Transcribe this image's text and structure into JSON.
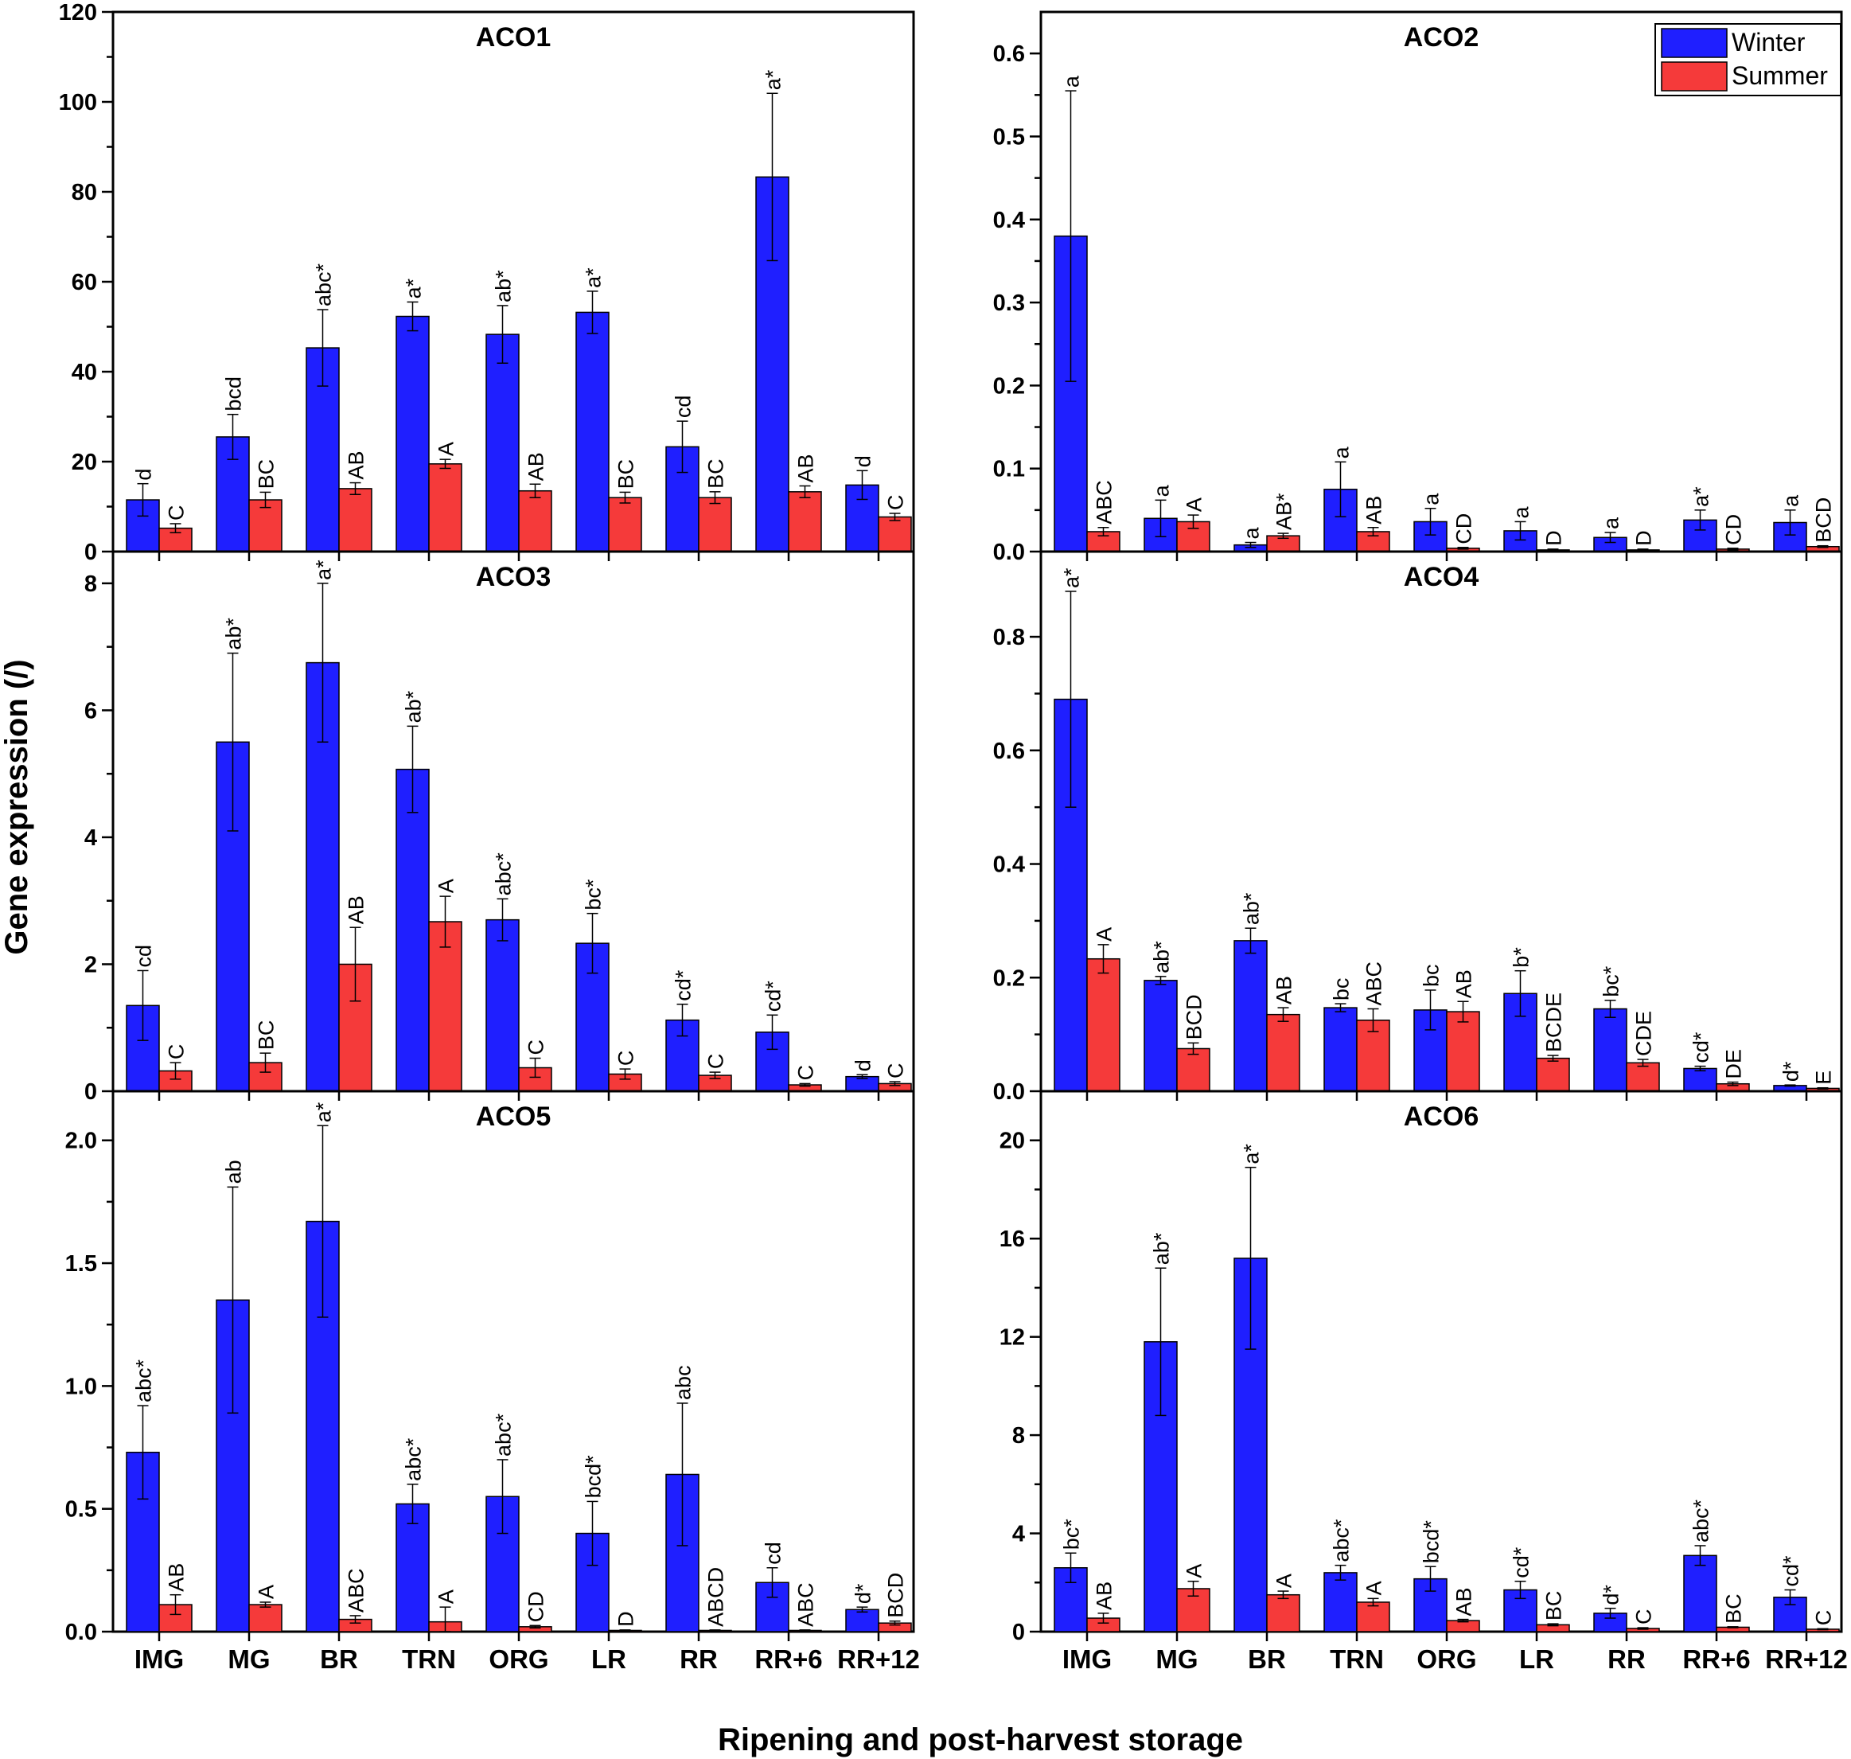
{
  "colors": {
    "winter": "#1f1fff",
    "summer": "#f53a3a"
  },
  "chart_data": {
    "type": "bar",
    "title": "",
    "xlabel": "Ripening and post-harvest storage",
    "ylabel": "Gene expression (/)",
    "legend": {
      "position": "top-right",
      "entries": [
        "Winter",
        "Summer"
      ]
    },
    "categories": [
      "IMG",
      "MG",
      "BR",
      "TRN",
      "ORG",
      "LR",
      "RR",
      "RR+6",
      "RR+12"
    ],
    "panels": [
      {
        "title": "ACO1",
        "ylim": [
          0,
          120
        ],
        "yticks": [
          0,
          20,
          40,
          60,
          80,
          100,
          120
        ],
        "ytick_labels": [
          "0",
          "20",
          "40",
          "60",
          "80",
          "100",
          "120"
        ],
        "series": [
          {
            "name": "Winter",
            "values": [
              11.5,
              25.5,
              45.3,
              52.3,
              48.3,
              53.2,
              23.3,
              83.3,
              14.8
            ],
            "errors": [
              3.6,
              5,
              8.5,
              3.2,
              6.4,
              4.7,
              5.7,
              18.6,
              3.2
            ],
            "labels": [
              "d",
              "bcd",
              "abc*",
              "a*",
              "ab*",
              "a*",
              "cd",
              "a*",
              "d"
            ]
          },
          {
            "name": "Summer",
            "values": [
              5.2,
              11.5,
              14,
              19.5,
              13.5,
              12,
              12,
              13.3,
              7.7
            ],
            "errors": [
              1,
              1.7,
              1.3,
              1,
              1.5,
              1.2,
              1.3,
              1.3,
              0.8
            ],
            "labels": [
              "C",
              "BC",
              "AB",
              "A",
              "AB",
              "BC",
              "BC",
              "AB",
              "C"
            ]
          }
        ]
      },
      {
        "title": "ACO2",
        "ylim": [
          0,
          0.65
        ],
        "yticks": [
          0,
          0.1,
          0.2,
          0.3,
          0.4,
          0.5,
          0.6
        ],
        "ytick_labels": [
          "0.0",
          "0.1",
          "0.2",
          "0.3",
          "0.4",
          "0.5",
          "0.6"
        ],
        "series": [
          {
            "name": "Winter",
            "values": [
              0.38,
              0.04,
              0.008,
              0.075,
              0.036,
              0.025,
              0.017,
              0.038,
              0.035
            ],
            "errors": [
              0.175,
              0.022,
              0.003,
              0.033,
              0.016,
              0.011,
              0.006,
              0.012,
              0.015
            ],
            "labels": [
              "a",
              "a",
              "a",
              "a",
              "a",
              "a",
              "a",
              "a*",
              "a"
            ]
          },
          {
            "name": "Summer",
            "values": [
              0.024,
              0.036,
              0.019,
              0.024,
              0.004,
              0.002,
              0.002,
              0.003,
              0.006
            ],
            "errors": [
              0.005,
              0.008,
              0.003,
              0.005,
              0.001,
              0.001,
              0.001,
              0.001,
              0.001
            ],
            "labels": [
              "ABC",
              "A",
              "AB*",
              "AB",
              "CD",
              "D",
              "D",
              "CD",
              "BCD"
            ]
          }
        ]
      },
      {
        "title": "ACO3",
        "ylim": [
          0,
          8.5
        ],
        "yticks": [
          0,
          2,
          4,
          6,
          8
        ],
        "ytick_labels": [
          "0",
          "2",
          "4",
          "6",
          "8"
        ],
        "series": [
          {
            "name": "Winter",
            "values": [
              1.35,
              5.5,
              6.75,
              5.07,
              2.7,
              2.33,
              1.12,
              0.93,
              0.23
            ],
            "errors": [
              0.55,
              1.4,
              1.25,
              0.68,
              0.33,
              0.47,
              0.25,
              0.27,
              0.03
            ],
            "labels": [
              "cd",
              "ab*",
              "a*",
              "ab*",
              "abc*",
              "bc*",
              "cd*",
              "cd*",
              "d"
            ]
          },
          {
            "name": "Summer",
            "values": [
              0.32,
              0.45,
              2.0,
              2.67,
              0.37,
              0.27,
              0.25,
              0.1,
              0.12
            ],
            "errors": [
              0.13,
              0.15,
              0.58,
              0.4,
              0.15,
              0.08,
              0.05,
              0.02,
              0.03
            ],
            "labels": [
              "C",
              "BC",
              "AB",
              "A",
              "C",
              "C",
              "C",
              "C",
              "C"
            ]
          }
        ]
      },
      {
        "title": "ACO4",
        "ylim": [
          0,
          0.95
        ],
        "yticks": [
          0,
          0.2,
          0.4,
          0.6,
          0.8
        ],
        "ytick_labels": [
          "0.0",
          "0.2",
          "0.4",
          "0.6",
          "0.8"
        ],
        "series": [
          {
            "name": "Winter",
            "values": [
              0.69,
              0.195,
              0.265,
              0.147,
              0.143,
              0.172,
              0.145,
              0.04,
              0.01
            ],
            "errors": [
              0.19,
              0.007,
              0.022,
              0.007,
              0.035,
              0.04,
              0.015,
              0.004,
              0.001
            ],
            "labels": [
              "a*",
              "ab*",
              "ab*",
              "bc",
              "bc",
              "b*",
              "bc*",
              "cd*",
              "d*"
            ]
          },
          {
            "name": "Summer",
            "values": [
              0.233,
              0.075,
              0.135,
              0.125,
              0.14,
              0.058,
              0.05,
              0.013,
              0.005
            ],
            "errors": [
              0.025,
              0.01,
              0.012,
              0.02,
              0.018,
              0.005,
              0.006,
              0.003,
              0.001
            ],
            "labels": [
              "A",
              "BCD",
              "AB",
              "ABC",
              "AB",
              "BCDE",
              "CDE",
              "DE",
              "E"
            ]
          }
        ]
      },
      {
        "title": "ACO5",
        "ylim": [
          0,
          2.2
        ],
        "yticks": [
          0,
          0.5,
          1,
          1.5,
          2
        ],
        "ytick_labels": [
          "0.0",
          "0.5",
          "1.0",
          "1.5",
          "2.0"
        ],
        "series": [
          {
            "name": "Winter",
            "values": [
              0.73,
              1.35,
              1.67,
              0.52,
              0.55,
              0.4,
              0.64,
              0.2,
              0.09
            ],
            "errors": [
              0.19,
              0.46,
              0.39,
              0.08,
              0.15,
              0.13,
              0.29,
              0.06,
              0.01
            ],
            "labels": [
              "abc*",
              "ab",
              "a*",
              "abc*",
              "abc*",
              "bcd*",
              "abc",
              "cd",
              "d*"
            ]
          },
          {
            "name": "Summer",
            "values": [
              0.11,
              0.11,
              0.05,
              0.04,
              0.02,
              0.005,
              0.005,
              0.005,
              0.035
            ],
            "errors": [
              0.04,
              0.01,
              0.015,
              0.06,
              0.005,
              0.002,
              0.002,
              0.002,
              0.008
            ],
            "labels": [
              "AB",
              "A",
              "ABC",
              "A",
              "CD",
              "D",
              "ABCD",
              "ABC",
              "BCD"
            ]
          }
        ]
      },
      {
        "title": "ACO6",
        "ylim": [
          0,
          22
        ],
        "yticks": [
          0,
          4,
          8,
          12,
          16,
          20
        ],
        "ytick_labels": [
          "0",
          "4",
          "8",
          "12",
          "16",
          "20"
        ],
        "series": [
          {
            "name": "Winter",
            "values": [
              2.6,
              11.8,
              15.2,
              2.4,
              2.15,
              1.7,
              0.75,
              3.1,
              1.4
            ],
            "errors": [
              0.6,
              3,
              3.7,
              0.3,
              0.5,
              0.35,
              0.2,
              0.4,
              0.3
            ],
            "labels": [
              "bc*",
              "ab*",
              "a*",
              "abc*",
              "bcd*",
              "cd*",
              "d*",
              "abc*",
              "cd*"
            ]
          },
          {
            "name": "Summer",
            "values": [
              0.55,
              1.75,
              1.5,
              1.2,
              0.45,
              0.28,
              0.13,
              0.18,
              0.1
            ],
            "errors": [
              0.2,
              0.3,
              0.15,
              0.15,
              0.05,
              0.04,
              0.03,
              0.02,
              0.02
            ],
            "labels": [
              "AB",
              "A",
              "A",
              "A",
              "AB",
              "BC",
              "C",
              "BC",
              "C"
            ]
          }
        ]
      }
    ]
  }
}
